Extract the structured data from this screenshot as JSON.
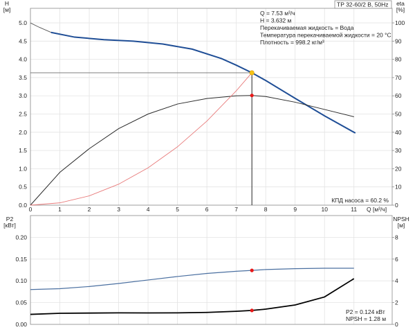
{
  "colors": {
    "head_curve": "#1f4e96",
    "head_thin": "#555555",
    "efficiency_curve": "#2a2a2a",
    "system_curve": "#e87a7a",
    "p2_curve": "#4a6fa0",
    "npsh_curve": "#000000",
    "marker_red": "#e81818",
    "marker_yellow": "#f5c518",
    "grid": "#e3e3e3"
  },
  "chart_data": [
    {
      "type": "line",
      "title": "TP 32-60/2 B, 50Hz",
      "xlabel": "Q [м³/ч]",
      "ylabel": "H\n[м]",
      "y2label": "eta\n[%]",
      "xlim": [
        0,
        12.3
      ],
      "ylim": [
        0,
        5.4
      ],
      "y2lim": [
        0,
        108
      ],
      "x_ticks": [
        "0",
        "1",
        "2",
        "3",
        "4",
        "5",
        "6",
        "7",
        "8",
        "9",
        "10",
        "11"
      ],
      "y_ticks": [
        "0.0",
        "0.5",
        "1.0",
        "1.5",
        "2.0",
        "2.5",
        "3.0",
        "3.5",
        "4.0",
        "4.5",
        "5.0"
      ],
      "y2_ticks": [
        "0",
        "10",
        "20",
        "30",
        "40",
        "50",
        "60",
        "70",
        "80",
        "90",
        "100"
      ],
      "grid": true,
      "info_box": [
        "Q = 7.53 м³/ч",
        "H = 3.632 м",
        "Перекачиваемая жидкость = Вода",
        "Температура перекачиваемой жидкости = 20 °C",
        "Плотность = 998.2 кг/м³"
      ],
      "annotation": "КПД насоса = 60.2 %",
      "operating_point": {
        "x": 7.53,
        "y": 3.632,
        "eta": 60.2
      },
      "series": [
        {
          "axis": "left",
          "style": "thin",
          "values": [
            [
              0,
              5.0
            ],
            [
              0.3,
              4.88
            ],
            [
              0.7,
              4.74
            ]
          ]
        },
        {
          "axis": "left",
          "style": "thick",
          "values": [
            [
              0.7,
              4.74
            ],
            [
              1.5,
              4.61
            ],
            [
              2.5,
              4.54
            ],
            [
              3.5,
              4.5
            ],
            [
              4.5,
              4.42
            ],
            [
              5.5,
              4.28
            ],
            [
              6.5,
              4.02
            ],
            [
              7.0,
              3.84
            ],
            [
              7.53,
              3.632
            ],
            [
              8.0,
              3.42
            ],
            [
              9.0,
              2.93
            ],
            [
              10.0,
              2.45
            ],
            [
              11.0,
              2.0
            ],
            [
              11.05,
              1.98
            ]
          ]
        },
        {
          "axis": "right",
          "style": "efficiency",
          "values": [
            [
              0,
              0
            ],
            [
              1,
              18
            ],
            [
              2,
              31
            ],
            [
              3,
              42
            ],
            [
              4,
              50
            ],
            [
              5,
              55.5
            ],
            [
              6,
              58.5
            ],
            [
              7,
              60.0
            ],
            [
              7.53,
              60.2
            ],
            [
              8,
              59.6
            ],
            [
              9,
              56.5
            ],
            [
              10,
              52.5
            ],
            [
              11,
              48.5
            ]
          ]
        },
        {
          "axis": "left",
          "style": "system",
          "values": [
            [
              0,
              0
            ],
            [
              1,
              0.064
            ],
            [
              2,
              0.256
            ],
            [
              3,
              0.576
            ],
            [
              4,
              1.025
            ],
            [
              5,
              1.601
            ],
            [
              6,
              2.306
            ],
            [
              7,
              3.138
            ],
            [
              7.53,
              3.632
            ]
          ]
        }
      ]
    },
    {
      "type": "line",
      "xlim": [
        0,
        12.3
      ],
      "ylabel": "P2\n[кВт]",
      "y2label": "NPSH\n[м]",
      "ylim": [
        0,
        0.25
      ],
      "y2lim": [
        0,
        10
      ],
      "y_ticks": [
        "0.00",
        "0.05",
        "0.10",
        "0.15",
        "0.20"
      ],
      "y2_ticks": [
        "0",
        "2",
        "4",
        "6",
        "8"
      ],
      "grid": true,
      "annotations": [
        "P2 = 0.124 кВт",
        "NPSH = 1.28 м"
      ],
      "operating_point": {
        "x": 7.53,
        "p2": 0.124,
        "npsh": 1.28
      },
      "series": [
        {
          "axis": "left",
          "style": "p2",
          "values": [
            [
              0,
              0.08
            ],
            [
              1,
              0.082
            ],
            [
              2,
              0.087
            ],
            [
              3,
              0.094
            ],
            [
              4,
              0.102
            ],
            [
              5,
              0.11
            ],
            [
              6,
              0.117
            ],
            [
              7,
              0.122
            ],
            [
              7.53,
              0.124
            ],
            [
              8,
              0.126
            ],
            [
              9,
              0.128
            ],
            [
              10,
              0.129
            ],
            [
              11,
              0.129
            ]
          ]
        },
        {
          "axis": "right",
          "style": "npsh",
          "values": [
            [
              0,
              0.92
            ],
            [
              1,
              1.02
            ],
            [
              2,
              1.04
            ],
            [
              3,
              1.06
            ],
            [
              4,
              1.05
            ],
            [
              5,
              1.06
            ],
            [
              6,
              1.1
            ],
            [
              7,
              1.2
            ],
            [
              7.53,
              1.28
            ],
            [
              8,
              1.4
            ],
            [
              9,
              1.78
            ],
            [
              10,
              2.52
            ],
            [
              11,
              4.2
            ]
          ]
        }
      ]
    }
  ]
}
